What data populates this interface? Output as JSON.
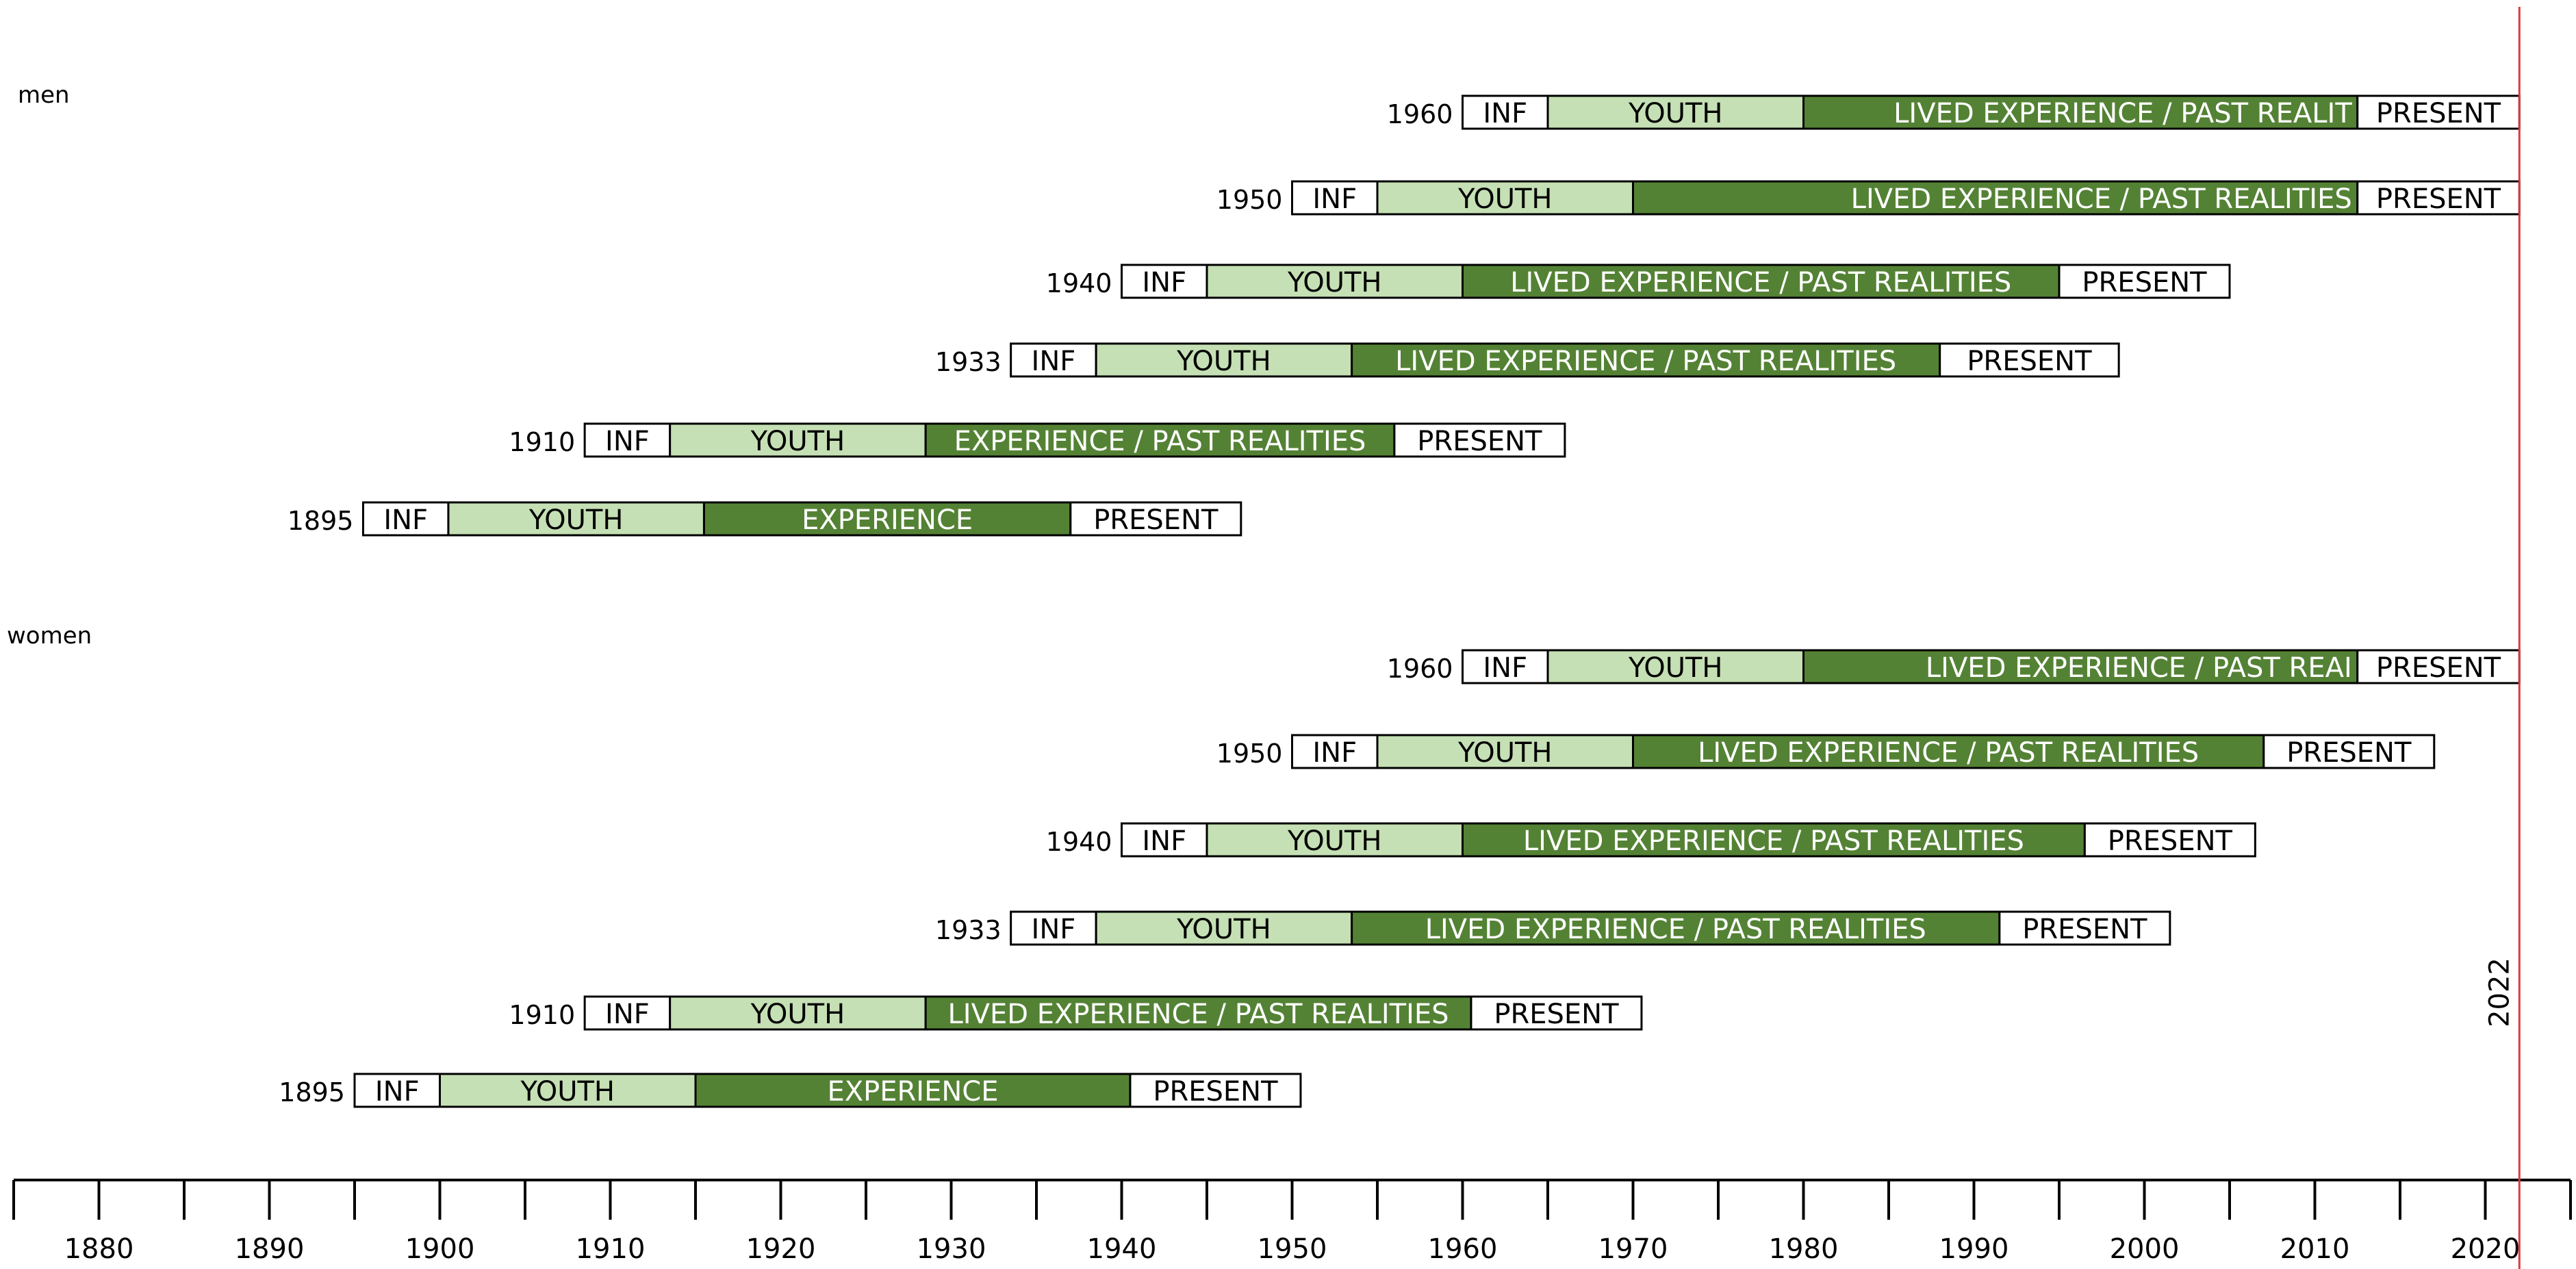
{
  "chart_data": {
    "type": "timeline",
    "reference_year": 2022,
    "reference_label": "2022",
    "reference_color": "#e03a3a",
    "x_axis": {
      "min": 1875,
      "max": 2025,
      "tick_step": 5,
      "tick_labels": [
        "1880",
        "1890",
        "1900",
        "1910",
        "1920",
        "1930",
        "1940",
        "1950",
        "1960",
        "1970",
        "1980",
        "1990",
        "2000",
        "2010",
        "2020"
      ]
    },
    "colors": {
      "INF": "#ffffff",
      "YOUTH": "#c5e0b4",
      "EXPERIENCE": "#548235",
      "PRESENT": "#ffffff",
      "outline": "#000000"
    },
    "groups": [
      {
        "label": "men",
        "rows": [
          {
            "birth_label": "1960",
            "segments": [
              {
                "phase": "INF",
                "label": "INF",
                "start": 1960,
                "end": 1965
              },
              {
                "phase": "YOUTH",
                "label": "YOUTH",
                "start": 1965,
                "end": 1980
              },
              {
                "phase": "EXPERIENCE",
                "label": "LIVED EXPERIENCE / PAST REALIT",
                "start": 1980,
                "end": 2012.5
              },
              {
                "phase": "PRESENT",
                "label": "PRESENT",
                "start": 2012.5,
                "end": 2022
              }
            ]
          },
          {
            "birth_label": "1950",
            "segments": [
              {
                "phase": "INF",
                "label": "INF",
                "start": 1950,
                "end": 1955
              },
              {
                "phase": "YOUTH",
                "label": "YOUTH",
                "start": 1955,
                "end": 1970
              },
              {
                "phase": "EXPERIENCE",
                "label": "LIVED EXPERIENCE / PAST REALITIES",
                "start": 1970,
                "end": 2012.5
              },
              {
                "phase": "PRESENT",
                "label": "PRESENT",
                "start": 2012.5,
                "end": 2022
              }
            ]
          },
          {
            "birth_label": "1940",
            "segments": [
              {
                "phase": "INF",
                "label": "INF",
                "start": 1940,
                "end": 1945
              },
              {
                "phase": "YOUTH",
                "label": "YOUTH",
                "start": 1945,
                "end": 1960
              },
              {
                "phase": "EXPERIENCE",
                "label": "LIVED EXPERIENCE / PAST REALITIES",
                "start": 1960,
                "end": 1995
              },
              {
                "phase": "PRESENT",
                "label": "PRESENT",
                "start": 1995,
                "end": 2005
              }
            ]
          },
          {
            "birth_label": "1933",
            "segments": [
              {
                "phase": "INF",
                "label": "INF",
                "start": 1933.5,
                "end": 1938.5
              },
              {
                "phase": "YOUTH",
                "label": "YOUTH",
                "start": 1938.5,
                "end": 1953.5
              },
              {
                "phase": "EXPERIENCE",
                "label": "LIVED EXPERIENCE / PAST REALITIES",
                "start": 1953.5,
                "end": 1988
              },
              {
                "phase": "PRESENT",
                "label": "PRESENT",
                "start": 1988,
                "end": 1998.5
              }
            ]
          },
          {
            "birth_label": "1910",
            "segments": [
              {
                "phase": "INF",
                "label": "INF",
                "start": 1908.5,
                "end": 1913.5
              },
              {
                "phase": "YOUTH",
                "label": "YOUTH",
                "start": 1913.5,
                "end": 1928.5
              },
              {
                "phase": "EXPERIENCE",
                "label": "EXPERIENCE / PAST REALITIES",
                "start": 1928.5,
                "end": 1956
              },
              {
                "phase": "PRESENT",
                "label": "PRESENT",
                "start": 1956,
                "end": 1966
              }
            ]
          },
          {
            "birth_label": "1895",
            "segments": [
              {
                "phase": "INF",
                "label": "INF",
                "start": 1895.5,
                "end": 1900.5
              },
              {
                "phase": "YOUTH",
                "label": "YOUTH",
                "start": 1900.5,
                "end": 1915.5
              },
              {
                "phase": "EXPERIENCE",
                "label": "EXPERIENCE",
                "start": 1915.5,
                "end": 1937
              },
              {
                "phase": "PRESENT",
                "label": "PRESENT",
                "start": 1937,
                "end": 1947
              }
            ]
          }
        ]
      },
      {
        "label": "women",
        "rows": [
          {
            "birth_label": "1960",
            "segments": [
              {
                "phase": "INF",
                "label": "INF",
                "start": 1960,
                "end": 1965
              },
              {
                "phase": "YOUTH",
                "label": "YOUTH",
                "start": 1965,
                "end": 1980
              },
              {
                "phase": "EXPERIENCE",
                "label": "LIVED EXPERIENCE / PAST REAI",
                "start": 1980,
                "end": 2012.5
              },
              {
                "phase": "PRESENT",
                "label": "PRESENT",
                "start": 2012.5,
                "end": 2022
              }
            ]
          },
          {
            "birth_label": "1950",
            "segments": [
              {
                "phase": "INF",
                "label": "INF",
                "start": 1950,
                "end": 1955
              },
              {
                "phase": "YOUTH",
                "label": "YOUTH",
                "start": 1955,
                "end": 1970
              },
              {
                "phase": "EXPERIENCE",
                "label": "LIVED EXPERIENCE / PAST REALITIES",
                "start": 1970,
                "end": 2007
              },
              {
                "phase": "PRESENT",
                "label": "PRESENT",
                "start": 2007,
                "end": 2017
              }
            ]
          },
          {
            "birth_label": "1940",
            "segments": [
              {
                "phase": "INF",
                "label": "INF",
                "start": 1940,
                "end": 1945
              },
              {
                "phase": "YOUTH",
                "label": "YOUTH",
                "start": 1945,
                "end": 1960
              },
              {
                "phase": "EXPERIENCE",
                "label": "LIVED EXPERIENCE / PAST REALITIES",
                "start": 1960,
                "end": 1996.5
              },
              {
                "phase": "PRESENT",
                "label": "PRESENT",
                "start": 1996.5,
                "end": 2006.5
              }
            ]
          },
          {
            "birth_label": "1933",
            "segments": [
              {
                "phase": "INF",
                "label": "INF",
                "start": 1933.5,
                "end": 1938.5
              },
              {
                "phase": "YOUTH",
                "label": "YOUTH",
                "start": 1938.5,
                "end": 1953.5
              },
              {
                "phase": "EXPERIENCE",
                "label": "LIVED EXPERIENCE / PAST REALITIES",
                "start": 1953.5,
                "end": 1991.5
              },
              {
                "phase": "PRESENT",
                "label": "PRESENT",
                "start": 1991.5,
                "end": 2001.5
              }
            ]
          },
          {
            "birth_label": "1910",
            "segments": [
              {
                "phase": "INF",
                "label": "INF",
                "start": 1908.5,
                "end": 1913.5
              },
              {
                "phase": "YOUTH",
                "label": "YOUTH",
                "start": 1913.5,
                "end": 1928.5
              },
              {
                "phase": "EXPERIENCE",
                "label": "LIVED EXPERIENCE / PAST REALITIES",
                "start": 1928.5,
                "end": 1960.5
              },
              {
                "phase": "PRESENT",
                "label": "PRESENT",
                "start": 1960.5,
                "end": 1970.5
              }
            ]
          },
          {
            "birth_label": "1895",
            "segments": [
              {
                "phase": "INF",
                "label": "INF",
                "start": 1895,
                "end": 1900
              },
              {
                "phase": "YOUTH",
                "label": "YOUTH",
                "start": 1900,
                "end": 1915
              },
              {
                "phase": "EXPERIENCE",
                "label": "EXPERIENCE",
                "start": 1915,
                "end": 1940.5
              },
              {
                "phase": "PRESENT",
                "label": "PRESENT",
                "start": 1940.5,
                "end": 1950.5
              }
            ]
          }
        ]
      }
    ]
  }
}
